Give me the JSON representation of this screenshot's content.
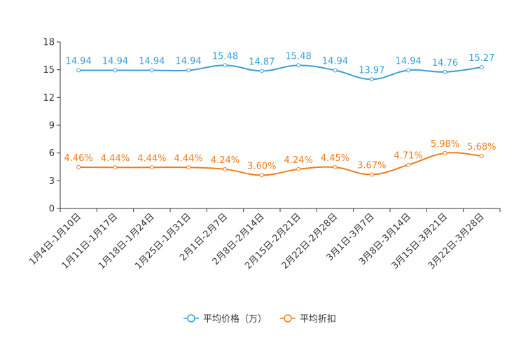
{
  "chart_data": {
    "type": "line",
    "title": "",
    "xlabel": "",
    "ylabel": "",
    "ylim": [
      0,
      18
    ],
    "yticks": [
      "0",
      "3",
      "6",
      "9",
      "12",
      "15",
      "18"
    ],
    "categories": [
      "1月4日-1月10日",
      "1月11日-1月17日",
      "1月18日-1月24日",
      "1月25日-1月31日",
      "2月1日-2月7日",
      "2月8日-2月14日",
      "2月15日-2月21日",
      "2月22日-2月28日",
      "3月1日-3月7日",
      "3月8日-3月14日",
      "3月15日-3月21日",
      "3月22日-3月28日"
    ],
    "series": [
      {
        "name": "平均价格（万）",
        "color": "#3a9fd6",
        "values": [
          14.94,
          14.94,
          14.94,
          14.94,
          15.48,
          14.87,
          15.48,
          14.94,
          13.97,
          14.94,
          14.76,
          15.27
        ],
        "labels": [
          "14.94",
          "14.94",
          "14.94",
          "14.94",
          "15.48",
          "14.87",
          "15.48",
          "14.94",
          "13.97",
          "14.94",
          "14.76",
          "15.27"
        ]
      },
      {
        "name": "平均折扣",
        "color": "#f07c1a",
        "values": [
          4.46,
          4.44,
          4.44,
          4.44,
          4.24,
          3.6,
          4.24,
          4.45,
          3.67,
          4.71,
          5.98,
          5.68
        ],
        "labels": [
          "4.46%",
          "4.44%",
          "4.44%",
          "4.44%",
          "4.24%",
          "3.60%",
          "4.24%",
          "4.45%",
          "3.67%",
          "4.71%",
          "5.98%",
          "5.68%"
        ]
      }
    ],
    "legend": "bottom-center",
    "grid": false
  }
}
